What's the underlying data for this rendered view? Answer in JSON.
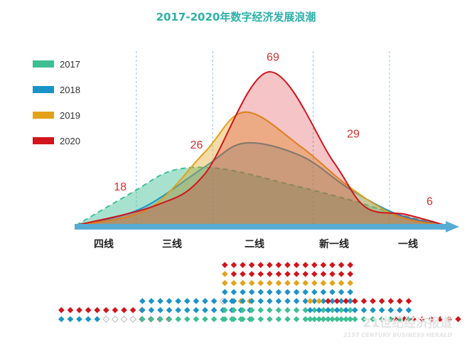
{
  "chart_data": {
    "type": "area",
    "title": "2017-2020年数字经济发展浪潮",
    "categories": [
      "四线",
      "三线",
      "二线",
      "新一线",
      "一线"
    ],
    "series": [
      {
        "name": "2017",
        "color": "#3dbf93",
        "style": "dashed",
        "x": [
          0.0,
          0.7,
          1.2,
          1.8,
          2.6,
          3.4,
          4.0,
          4.6
        ],
        "y": [
          0,
          18,
          30,
          31,
          23,
          14,
          6,
          0
        ]
      },
      {
        "name": "2018",
        "color": "#1a94c8",
        "style": "solid",
        "x": [
          0.0,
          0.8,
          1.6,
          2.1,
          2.8,
          3.4,
          4.0,
          4.6
        ],
        "y": [
          0,
          9,
          32,
          45,
          38,
          20,
          6,
          0
        ]
      },
      {
        "name": "2019",
        "color": "#e3a21a",
        "style": "solid",
        "x": [
          0.0,
          0.9,
          1.6,
          2.1,
          2.8,
          3.4,
          4.0,
          4.6
        ],
        "y": [
          0,
          9,
          40,
          62,
          43,
          21,
          5,
          0
        ]
      },
      {
        "name": "2020",
        "color": "#d2141b",
        "style": "solid",
        "x": [
          0.0,
          1.0,
          1.6,
          2.4,
          3.2,
          3.6,
          4.1,
          4.6
        ],
        "y": [
          0,
          11,
          28,
          84,
          35,
          10,
          6,
          0
        ]
      }
    ],
    "annotations": [
      {
        "text": "18",
        "x": 0.55,
        "y": 19
      },
      {
        "text": "26",
        "x": 1.5,
        "y": 42
      },
      {
        "text": "69",
        "x": 2.45,
        "y": 90
      },
      {
        "text": "29",
        "x": 3.45,
        "y": 48
      },
      {
        "text": "6",
        "x": 4.4,
        "y": 11
      }
    ],
    "xlim": [
      0,
      4.6
    ],
    "ylim": [
      0,
      100
    ],
    "tier_dividers": [
      0.75,
      1.7,
      2.95,
      3.9
    ],
    "legend_position": "top-left",
    "grid": false
  },
  "diamond_groups": [
    {
      "tier": "四线",
      "rows": [
        [
          "red",
          "red",
          "red",
          "red",
          "red",
          "red",
          "red",
          "red",
          "red",
          "red"
        ],
        [
          "blue",
          "blue",
          "blue",
          "blue",
          "blue",
          "empty",
          "empty",
          "empty",
          "empty",
          "red",
          "red",
          "red",
          "red"
        ]
      ]
    },
    {
      "tier": "三线",
      "rows": [
        [
          "blue",
          "blue",
          "blue",
          "blue",
          "blue",
          "blue",
          "blue",
          "blue",
          "blue",
          "empty",
          "blue",
          "yellow",
          "yellow"
        ],
        [
          "blue",
          "blue",
          "blue",
          "blue",
          "blue",
          "blue",
          "blue",
          "blue",
          "blue",
          "blue",
          "blue",
          "blue",
          "blue"
        ],
        [
          "green",
          "green",
          "green",
          "green",
          "green",
          "green",
          "green",
          "green",
          "green",
          "green",
          "green",
          "green",
          "green"
        ]
      ]
    },
    {
      "tier": "二线",
      "rows": [
        [
          "red",
          "red",
          "red",
          "red",
          "red",
          "red",
          "red",
          "red",
          "red",
          "red",
          "red",
          "red",
          "red",
          "red",
          "red"
        ],
        [
          "yellow",
          "red",
          "red",
          "red",
          "red",
          "red",
          "red",
          "red",
          "red",
          "red",
          "red",
          "red",
          "red",
          "red",
          "red"
        ],
        [
          "yellow",
          "yellow",
          "yellow",
          "yellow",
          "yellow",
          "yellow",
          "yellow",
          "yellow",
          "yellow",
          "yellow",
          "yellow",
          "yellow",
          "yellow",
          "yellow",
          "yellow"
        ],
        [
          "blue",
          "blue",
          "blue",
          "blue",
          "blue",
          "blue",
          "blue",
          "blue",
          "blue",
          "blue",
          "blue",
          "blue",
          "blue",
          "blue",
          "blue"
        ],
        [
          "blue",
          "blue",
          "blue",
          "blue",
          "blue",
          "blue",
          "blue",
          "blue",
          "blue",
          "blue",
          "blue",
          "blue",
          "blue",
          "blue",
          "blue"
        ],
        [
          "green",
          "green",
          "green",
          "green",
          "green",
          "green",
          "green",
          "green",
          "green",
          "green",
          "green",
          "green",
          "green",
          "green",
          "green"
        ],
        [
          "green",
          "green",
          "green",
          "green",
          "green",
          "green",
          "green",
          "green",
          "green",
          "green",
          "green",
          "green",
          "green",
          "green",
          "green"
        ]
      ]
    },
    {
      "tier": "新一线",
      "rows": [
        [
          "yellow",
          "yellow",
          "red",
          "red",
          "red",
          "red",
          "red",
          "red",
          "red",
          "red",
          "red",
          "red"
        ],
        [
          "blue",
          "blue",
          "blue",
          "blue",
          "blue",
          "blue",
          "blue",
          "blue",
          "blue",
          "blue",
          "blue",
          "blue"
        ],
        [
          "green",
          "green",
          "green",
          "green",
          "green",
          "green",
          "green",
          "green",
          "green",
          "green",
          "green",
          "green"
        ]
      ]
    },
    {
      "tier": "一线",
      "rows": [
        [
          "red",
          "red",
          "red",
          "red",
          "red",
          "red",
          "red",
          "red"
        ]
      ]
    }
  ],
  "diamond_colors": {
    "red": "#d2141b",
    "blue": "#1a94c8",
    "yellow": "#e3a21a",
    "green": "#3dbf93"
  },
  "watermark": {
    "cn": "21世纪经济报道",
    "en": "21ST CENTURY BUSINESS HERALD"
  }
}
